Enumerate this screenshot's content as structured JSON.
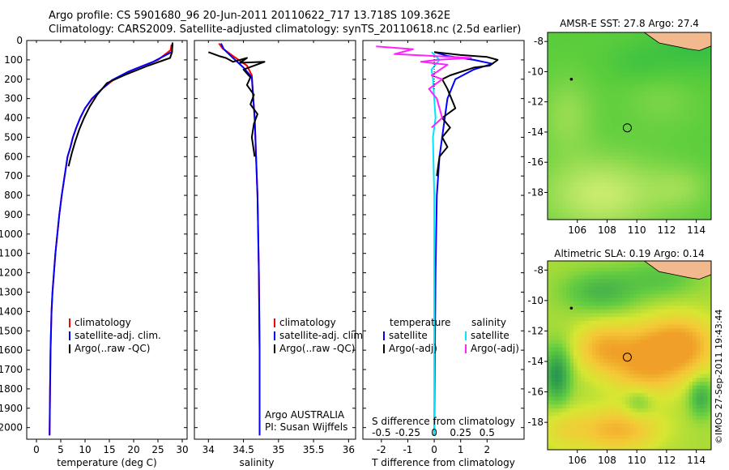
{
  "page": {
    "title": "Argo profile: CS 5901680_96 20-Jun-2011 20110622_717 13.718S 109.362E",
    "subtitle": "Climatology: CARS2009. Satellite-adjusted climatology: synTS_20110618.nc (2.5d earlier)",
    "credit": "©IMOS 27-Sep-2011 19:43:44"
  },
  "colors": {
    "climatology": "#ff0000",
    "satellite": "#0000ff",
    "argo": "#000000",
    "sal_satellite": "#00e5ff",
    "sal_argo": "#ff22ff",
    "land": "#f2b88e"
  },
  "chart_data": [
    {
      "id": "temperature",
      "type": "line",
      "xlabel": "temperature (deg C)",
      "ylabel": "",
      "xlim": [
        -2,
        31
      ],
      "ylim": [
        2060,
        0
      ],
      "xticks": [
        0,
        5,
        10,
        15,
        20,
        25,
        30
      ],
      "yticks": [
        0,
        100,
        200,
        300,
        400,
        500,
        600,
        700,
        800,
        900,
        1000,
        1100,
        1200,
        1300,
        1400,
        1500,
        1600,
        1700,
        1800,
        1900,
        2000
      ],
      "legend": [
        "climatology",
        "satellite-adj. clim.",
        "Argo(..raw -QC)"
      ],
      "legend_position": "lower-right",
      "series": [
        {
          "name": "climatology",
          "color_key": "climatology",
          "x": [
            27.8,
            27.6,
            25,
            20,
            16,
            13.5,
            11.5,
            10,
            9,
            8.2,
            7.5,
            7,
            6.4,
            5.8,
            5.2,
            4.7,
            4.3,
            3.9,
            3.6,
            3.3,
            3.1,
            2.9,
            2.8,
            2.7
          ],
          "y": [
            20,
            50,
            100,
            150,
            200,
            250,
            300,
            350,
            400,
            450,
            500,
            550,
            600,
            700,
            800,
            900,
            1000,
            1100,
            1200,
            1300,
            1400,
            1600,
            1800,
            2040
          ]
        },
        {
          "name": "satellite-adj. clim.",
          "color_key": "satellite",
          "x": [
            28,
            27.8,
            24,
            19,
            15.5,
            13.3,
            11.4,
            10,
            9,
            8.2,
            7.5,
            7,
            6.4,
            5.8,
            5.2,
            4.7,
            4.3,
            3.9,
            3.6,
            3.3,
            3.1,
            2.9,
            2.8,
            2.7
          ],
          "y": [
            20,
            60,
            110,
            160,
            205,
            255,
            300,
            350,
            400,
            450,
            500,
            550,
            600,
            700,
            800,
            900,
            1000,
            1100,
            1200,
            1300,
            1400,
            1600,
            1800,
            2040
          ]
        },
        {
          "name": "Argo(..raw -QC)",
          "color_key": "argo",
          "x": [
            28,
            27.9,
            27.5,
            23,
            18,
            14.5,
            12.5,
            11,
            9.8,
            8.8,
            8,
            7.3,
            6.6
          ],
          "y": [
            10,
            60,
            90,
            130,
            180,
            220,
            280,
            340,
            400,
            460,
            520,
            580,
            650
          ]
        }
      ]
    },
    {
      "id": "salinity",
      "type": "line",
      "xlabel": "salinity",
      "xlim": [
        33.8,
        36.1
      ],
      "ylim": [
        2060,
        0
      ],
      "xticks": [
        34,
        34.5,
        35,
        35.5,
        36
      ],
      "legend": [
        "climatology",
        "satellite-adj. clim.",
        "Argo(..raw -QC)"
      ],
      "legend_position": "lower-right",
      "annotation": [
        "Argo AUSTRALIA",
        "PI: Susan Wijffels"
      ],
      "series": [
        {
          "name": "climatology",
          "color_key": "climatology",
          "x": [
            34.15,
            34.2,
            34.35,
            34.55,
            34.62,
            34.64,
            34.66,
            34.67,
            34.68,
            34.7,
            34.72,
            34.73,
            34.73
          ],
          "y": [
            15,
            40,
            80,
            130,
            180,
            300,
            400,
            500,
            600,
            800,
            1200,
            1600,
            2040
          ]
        },
        {
          "name": "satellite-adj. clim.",
          "color_key": "satellite",
          "x": [
            34.18,
            34.22,
            34.35,
            34.5,
            34.62,
            34.64,
            34.66,
            34.67,
            34.68,
            34.7,
            34.72,
            34.73,
            34.73
          ],
          "y": [
            15,
            45,
            90,
            140,
            190,
            300,
            400,
            500,
            600,
            800,
            1200,
            1600,
            2040
          ]
        },
        {
          "name": "Argo(..raw -QC)",
          "color_key": "argo",
          "x": [
            34,
            34.15,
            34.25,
            34.35,
            34.55,
            34.45,
            34.8,
            34.5,
            34.6,
            34.55,
            34.65,
            34.6,
            34.7,
            34.65,
            34.62,
            34.66
          ],
          "y": [
            60,
            80,
            90,
            110,
            90,
            115,
            110,
            150,
            190,
            230,
            280,
            330,
            380,
            430,
            500,
            600
          ]
        }
      ]
    },
    {
      "id": "differences",
      "type": "line",
      "xlabel": "T difference from climatology",
      "top_label": "S difference from climatology",
      "xlim": [
        -2.7,
        3.4
      ],
      "ylim": [
        2060,
        0
      ],
      "xticks": [
        -2,
        -1,
        0,
        1,
        2
      ],
      "xticks_salinity": [
        -0.5,
        -0.25,
        0,
        0.25,
        0.5
      ],
      "legend": {
        "temperature": [
          "satellite",
          "Argo(-adj)"
        ],
        "salinity": [
          "satellite",
          "Argo(-adj)"
        ]
      },
      "legend_headers": [
        "temperature",
        "salinity"
      ],
      "legend_position": "lower-center",
      "series": [
        {
          "name": "temperature satellite",
          "color_key": "satellite",
          "x": [
            0,
            0.5,
            1.5,
            2.2,
            1.5,
            0.8,
            0.5,
            0.4,
            0.3,
            0.2,
            0.1,
            0.05,
            0
          ],
          "y": [
            60,
            80,
            100,
            120,
            150,
            200,
            300,
            400,
            500,
            600,
            800,
            1200,
            2040
          ]
        },
        {
          "name": "temperature Argo(-adj)",
          "color_key": "argo",
          "x": [
            0,
            1,
            2,
            2.4,
            2.1,
            1.5,
            0.6,
            0.3,
            0.5,
            0.8,
            0.3,
            0.6,
            0.3,
            0.5,
            0.2,
            0.1
          ],
          "y": [
            60,
            75,
            85,
            100,
            130,
            140,
            180,
            200,
            250,
            350,
            400,
            450,
            500,
            550,
            600,
            700
          ]
        },
        {
          "name": "salinity satellite",
          "color_key": "sal_satellite",
          "x": [
            -0.1,
            0.2,
            -0.1,
            -0.05,
            0,
            0.05,
            -0.05,
            0,
            0
          ],
          "y": [
            60,
            100,
            150,
            200,
            300,
            400,
            500,
            800,
            2040
          ]
        },
        {
          "name": "salinity Argo(-adj)",
          "color_key": "sal_argo",
          "x": [
            -2.2,
            -0.8,
            -1.5,
            0,
            1.4,
            0.1,
            -0.5,
            0.5,
            -0.1,
            0.3,
            -0.2,
            0.1,
            0.3,
            -0.1
          ],
          "y": [
            30,
            45,
            70,
            80,
            90,
            100,
            110,
            125,
            180,
            200,
            250,
            300,
            400,
            450
          ]
        }
      ]
    },
    {
      "id": "sst-map",
      "type": "heatmap",
      "title": "AMSR-E SST: 27.8  Argo: 27.4",
      "xlim": [
        104,
        115
      ],
      "ylim": [
        -19.8,
        -7.4
      ],
      "xticks": [
        106,
        108,
        110,
        112,
        114
      ],
      "yticks": [
        -8,
        -10,
        -12,
        -14,
        -16,
        -18
      ],
      "profile_location": [
        109.36,
        -13.72
      ],
      "ref_point": [
        105.6,
        -10.5
      ],
      "field": "sst",
      "blobs": [
        {
          "x": 113.8,
          "y": -8.4,
          "value": -0.7,
          "sx": 3,
          "sy": 1.8
        },
        {
          "x": 107.5,
          "y": -18.2,
          "value": 1.2,
          "sx": 4,
          "sy": 2.5
        },
        {
          "x": 105.2,
          "y": -13,
          "value": 0.6,
          "sx": 1.8,
          "sy": 2.5
        },
        {
          "x": 111.5,
          "y": -12,
          "value": 0.3,
          "sx": 2.5,
          "sy": 2
        },
        {
          "x": 112.8,
          "y": -17.8,
          "value": 0.5,
          "sx": 2,
          "sy": 1.5
        },
        {
          "x": 110,
          "y": -9.5,
          "value": -0.4,
          "sx": 2,
          "sy": 1.2
        }
      ]
    },
    {
      "id": "sla-map",
      "type": "heatmap",
      "title": "Altimetric SLA: 0.19  Argo: 0.14",
      "xlim": [
        104,
        115
      ],
      "ylim": [
        -19.8,
        -7.4
      ],
      "xticks": [
        106,
        108,
        110,
        112,
        114
      ],
      "yticks": [
        -8,
        -10,
        -12,
        -14,
        -16,
        -18
      ],
      "profile_location": [
        109.36,
        -13.72
      ],
      "ref_point": [
        105.6,
        -10.5
      ],
      "field": "sla",
      "blobs": [
        {
          "x": 110.5,
          "y": -14,
          "value": 1.0,
          "sx": 2.5,
          "sy": 2.2
        },
        {
          "x": 113,
          "y": -13,
          "value": 0.9,
          "sx": 2.2,
          "sy": 1.8
        },
        {
          "x": 107.5,
          "y": -13.2,
          "value": 0.7,
          "sx": 1.8,
          "sy": 1.6
        },
        {
          "x": 108.5,
          "y": -18.6,
          "value": 0.8,
          "sx": 2.8,
          "sy": 1.4
        },
        {
          "x": 104.5,
          "y": -15,
          "value": -1.0,
          "sx": 0.9,
          "sy": 1.8
        },
        {
          "x": 107.5,
          "y": -9.5,
          "value": -0.6,
          "sx": 2.5,
          "sy": 1.3
        },
        {
          "x": 111.5,
          "y": -8.6,
          "value": -0.4,
          "sx": 2.5,
          "sy": 1.2
        },
        {
          "x": 110,
          "y": -16.8,
          "value": -0.4,
          "sx": 1,
          "sy": 1
        },
        {
          "x": 114.2,
          "y": -16.5,
          "value": -0.7,
          "sx": 0.8,
          "sy": 1.2
        },
        {
          "x": 104.8,
          "y": -18.5,
          "value": 0.3,
          "sx": 1.5,
          "sy": 1.5
        }
      ]
    }
  ]
}
